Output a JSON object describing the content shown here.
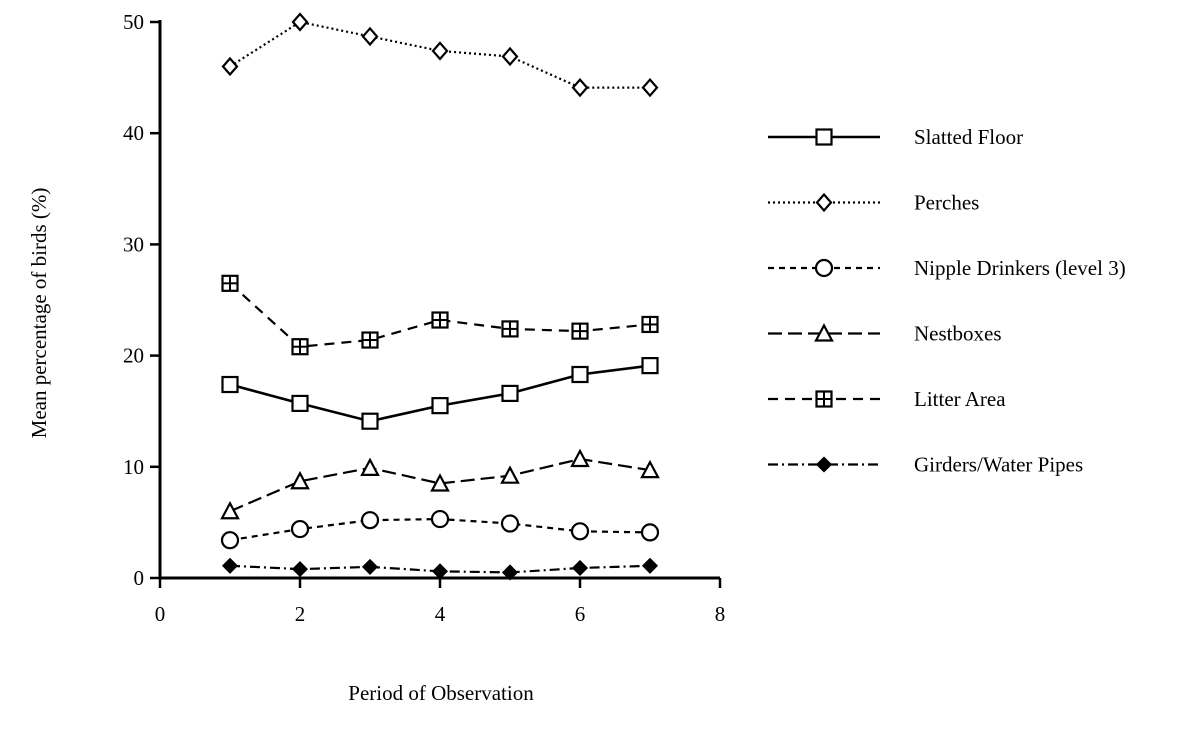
{
  "chart_data": {
    "type": "line",
    "title": "",
    "xlabel": "Period of Observation",
    "ylabel": "Mean percentage of birds (%)",
    "xlim": [
      0,
      8
    ],
    "ylim": [
      0,
      50
    ],
    "x_ticks": [
      "0",
      "2",
      "4",
      "6",
      "8"
    ],
    "y_ticks": [
      "0",
      "10",
      "20",
      "30",
      "40",
      "50"
    ],
    "grid": false,
    "legend_position": "right",
    "x": [
      1,
      2,
      3,
      4,
      5,
      6,
      7
    ],
    "series": [
      {
        "name": "Slatted Floor",
        "marker": "square",
        "line_style": "solid",
        "values": [
          17.4,
          15.7,
          14.1,
          15.5,
          16.6,
          18.3,
          19.1
        ]
      },
      {
        "name": "Perches",
        "marker": "diamond",
        "line_style": "dotted",
        "values": [
          46.0,
          50.0,
          48.7,
          47.4,
          46.9,
          44.1,
          44.1
        ]
      },
      {
        "name": "Nipple Drinkers (level 3)",
        "marker": "circle",
        "line_style": "short-dash",
        "values": [
          3.4,
          4.4,
          5.2,
          5.3,
          4.9,
          4.2,
          4.1
        ]
      },
      {
        "name": "Nestboxes",
        "marker": "triangle",
        "line_style": "long-dash",
        "values": [
          6.0,
          8.7,
          9.9,
          8.5,
          9.2,
          10.7,
          9.7
        ]
      },
      {
        "name": "Litter Area",
        "marker": "boxed-plus",
        "line_style": "dashed",
        "values": [
          26.5,
          20.8,
          21.4,
          23.2,
          22.4,
          22.2,
          22.8
        ]
      },
      {
        "name": "Girders/Water Pipes",
        "marker": "filled-diamond",
        "line_style": "dash-dot",
        "values": [
          1.1,
          0.8,
          1.0,
          0.6,
          0.5,
          0.9,
          1.1
        ]
      }
    ]
  }
}
